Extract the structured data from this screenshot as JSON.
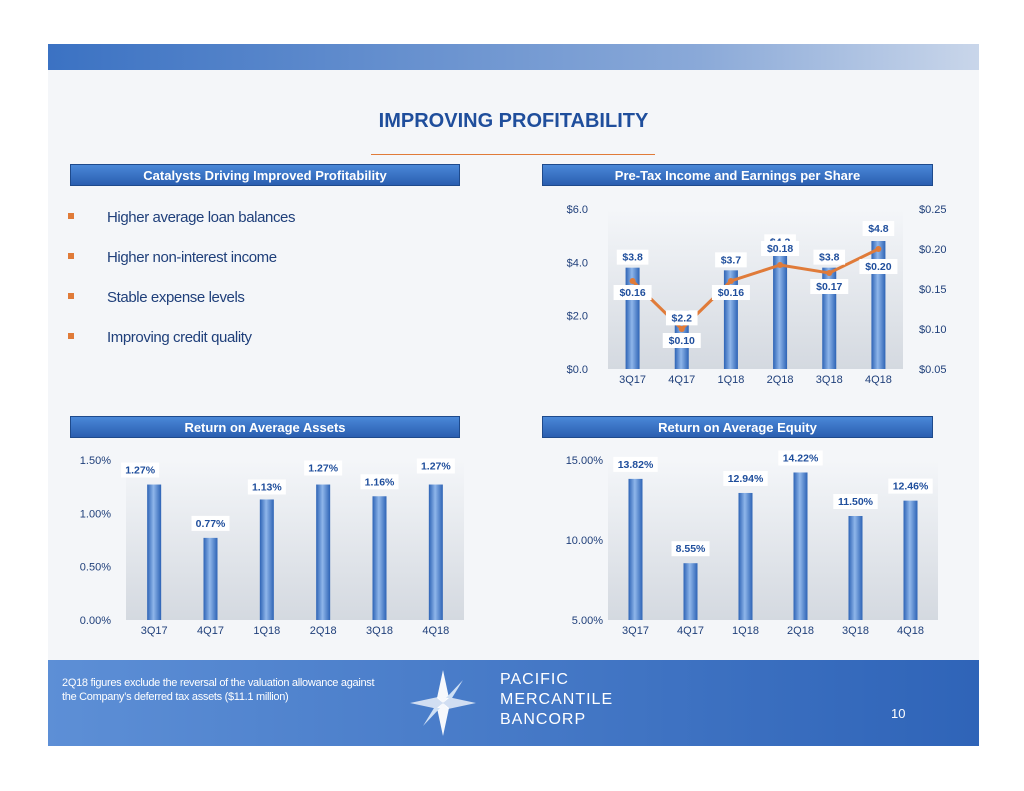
{
  "title": "IMPROVING PROFITABILITY",
  "panels": {
    "catalysts": "Catalysts Driving Improved Profitability",
    "pretax": "Pre-Tax Income and Earnings per Share",
    "roaa": "Return on Average Assets",
    "roae": "Return on Average Equity"
  },
  "bullets": [
    "Higher average loan balances",
    "Higher non-interest income",
    "Stable expense levels",
    "Improving credit quality"
  ],
  "footnote": "2Q18 figures exclude the reversal of the valuation allowance against the Company’s deferred tax assets ($11.1 million)",
  "logo": {
    "line1": "PACIFIC",
    "line2": "MERCANTILE",
    "line3": "BANCORP"
  },
  "page_number": "10",
  "colors": {
    "bar": "#4a84d0",
    "line": "#e07b39",
    "header": "#2a5eb0",
    "accent": "#e07b39"
  },
  "chart_data": [
    {
      "type": "bar",
      "categories": [
        "3Q17",
        "4Q17",
        "1Q18",
        "2Q18",
        "3Q18",
        "4Q18"
      ],
      "series": [
        {
          "values": [
            3.8,
            2.2,
            3.7,
            4.3,
            3.8,
            4.8
          ],
          "labels": [
            "$3.8",
            "$2.2",
            "$3.7",
            "$4.3",
            "$3.8",
            "$4.8"
          ]
        },
        {
          "type": "line",
          "values": [
            0.16,
            0.1,
            0.16,
            0.18,
            0.17,
            0.2
          ],
          "labels": [
            "$0.16",
            "$0.10",
            "$0.16",
            "$0.18",
            "$0.17",
            "$0.20"
          ]
        }
      ],
      "ylim": [
        0,
        6
      ],
      "yticks": [
        "$0.0",
        "$2.0",
        "$4.0",
        "$6.0"
      ],
      "y2lim": [
        0.05,
        0.25
      ],
      "y2ticks": [
        "$0.05",
        "$0.10",
        "$0.15",
        "$0.20",
        "$0.25"
      ],
      "grid": false
    },
    {
      "type": "bar",
      "categories": [
        "3Q17",
        "4Q17",
        "1Q18",
        "2Q18",
        "3Q18",
        "4Q18"
      ],
      "values": [
        1.27,
        0.77,
        1.13,
        1.27,
        1.16,
        1.27
      ],
      "labels": [
        "1.27%",
        "0.77%",
        "1.13%",
        "1.27%",
        "1.16%",
        "1.27%"
      ],
      "ylim": [
        0,
        1.5
      ],
      "yticks": [
        "0.00%",
        "0.50%",
        "1.00%",
        "1.50%"
      ],
      "grid": false
    },
    {
      "type": "bar",
      "categories": [
        "3Q17",
        "4Q17",
        "1Q18",
        "2Q18",
        "3Q18",
        "4Q18"
      ],
      "values": [
        13.82,
        8.55,
        12.94,
        14.22,
        11.5,
        12.46
      ],
      "labels": [
        "13.82%",
        "8.55%",
        "12.94%",
        "14.22%",
        "11.50%",
        "12.46%"
      ],
      "ylim": [
        5,
        15
      ],
      "yticks": [
        "5.00%",
        "10.00%",
        "15.00%"
      ],
      "grid": false
    }
  ]
}
